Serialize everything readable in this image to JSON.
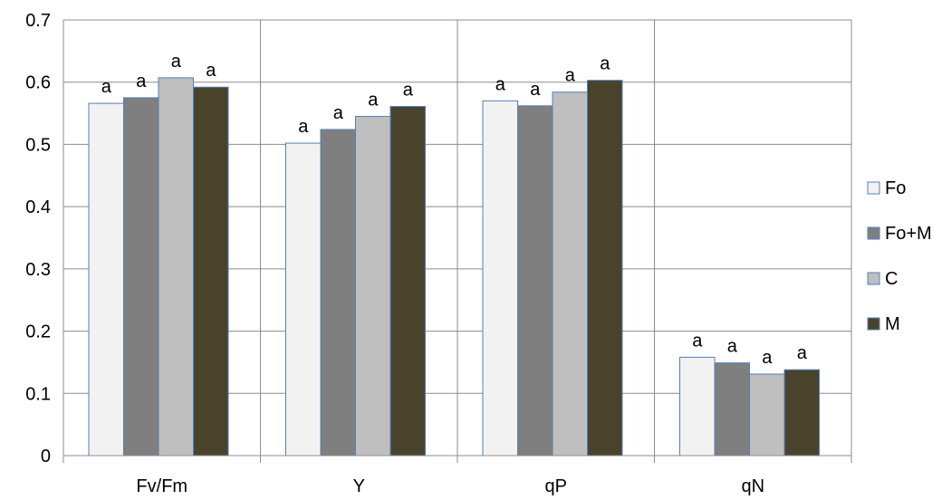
{
  "chart_data": {
    "type": "bar",
    "categories": [
      "Fv/Fm",
      "Y",
      "qP",
      "qN"
    ],
    "series": [
      {
        "name": "Fo",
        "color": "#f2f2f2",
        "stroke": "#4f81bd",
        "values": [
          0.566,
          0.502,
          0.57,
          0.158
        ],
        "labels": [
          "a",
          "a",
          "a",
          "a"
        ]
      },
      {
        "name": "Fo+M",
        "color": "#7f7f7f",
        "stroke": "#4f81bd",
        "values": [
          0.575,
          0.524,
          0.562,
          0.149
        ],
        "labels": [
          "a",
          "a",
          "a",
          "a"
        ]
      },
      {
        "name": "C",
        "color": "#bfbfbf",
        "stroke": "#4f81bd",
        "values": [
          0.607,
          0.545,
          0.584,
          0.131
        ],
        "labels": [
          "a",
          "a",
          "a",
          "a"
        ]
      },
      {
        "name": "M",
        "color": "#4a432c",
        "stroke": "#4f81bd",
        "values": [
          0.592,
          0.561,
          0.603,
          0.138
        ],
        "labels": [
          "a",
          "a",
          "a",
          "a"
        ]
      }
    ],
    "ylim": [
      0,
      0.7
    ],
    "yticks": [
      "0",
      "0.1",
      "0.2",
      "0.3",
      "0.4",
      "0.5",
      "0.6",
      "0.7"
    ],
    "grid": true,
    "legend": "right",
    "title": "",
    "xlabel": "",
    "ylabel": ""
  }
}
